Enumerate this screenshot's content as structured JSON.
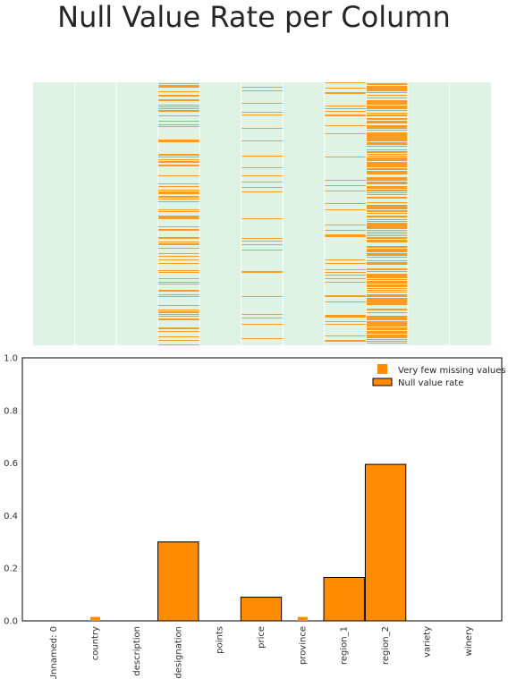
{
  "title": "Null Value Rate per Column",
  "colors": {
    "heat_background": "#dff3e4",
    "missing": "#ff8c00",
    "bar_edge": "#000000",
    "column_separator": "#ffffff"
  },
  "chart_data": [
    {
      "type": "heatmap",
      "title": "",
      "columns": [
        "Unnamed: 0",
        "country",
        "description",
        "designation",
        "points",
        "price",
        "province",
        "region_1",
        "region_2",
        "variety",
        "winery"
      ],
      "null_rates": [
        0,
        0.01,
        0,
        0.3,
        0,
        0.09,
        0.01,
        0.165,
        0.595,
        0,
        0
      ],
      "grid": false
    },
    {
      "type": "bar",
      "categories": [
        "Unnamed: 0",
        "country",
        "description",
        "designation",
        "points",
        "price",
        "province",
        "region_1",
        "region_2",
        "variety",
        "winery"
      ],
      "series": [
        {
          "name": "Very few missing values",
          "values": [
            0,
            0.015,
            0,
            0,
            0,
            0,
            0.015,
            0,
            0,
            0,
            0
          ]
        },
        {
          "name": "Null value rate",
          "values": [
            0,
            0,
            0,
            0.3,
            0,
            0.09,
            0,
            0.165,
            0.595,
            0,
            0
          ]
        }
      ],
      "ylim": [
        0,
        1.0
      ],
      "yticks": [
        "0.0",
        "0.2",
        "0.4",
        "0.6",
        "0.8",
        "1.0"
      ],
      "xlabel": "",
      "ylabel": "",
      "legend": "top-right",
      "grid": false
    }
  ]
}
